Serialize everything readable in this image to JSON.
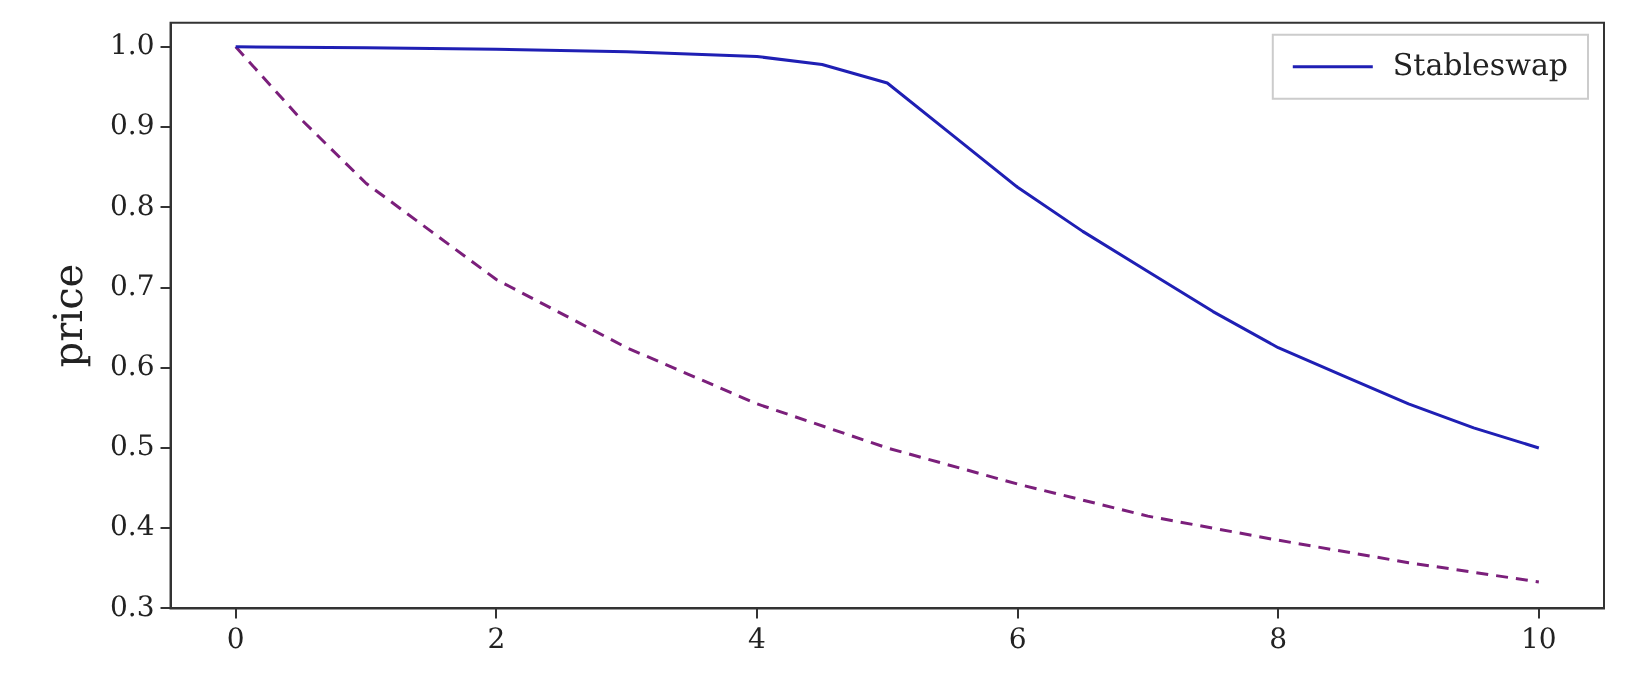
{
  "chart_data": {
    "type": "line",
    "ylabel": "price",
    "xlim": [
      -0.5,
      10.5
    ],
    "ylim": [
      0.3,
      1.03
    ],
    "xticks": [
      0,
      2,
      4,
      6,
      8,
      10
    ],
    "yticks": [
      0.3,
      0.4,
      0.5,
      0.6,
      0.7,
      0.8,
      0.9,
      {
        "value": 1,
        "label": "1.0"
      }
    ],
    "grid": false,
    "legend": "top right",
    "marker": "none",
    "series": [
      {
        "name": "Stableswap",
        "color": "#1f1fb4",
        "line_style": "solid",
        "x": [
          0,
          1,
          2,
          3,
          4,
          4.5,
          5,
          5.5,
          6,
          6.5,
          7,
          7.5,
          8,
          8.5,
          9,
          9.5,
          10
        ],
        "values": [
          1,
          0.999,
          0.997,
          0.994,
          0.988,
          0.978,
          0.955,
          0.89,
          0.825,
          0.77,
          0.72,
          0.67,
          0.625,
          0.59,
          0.555,
          0.525,
          0.5
        ]
      },
      {
        "color": "#7b1f7b",
        "line_style": "dashed",
        "x": [
          0,
          0.5,
          1,
          1.5,
          2,
          3,
          4,
          5,
          6,
          7,
          8,
          9,
          10
        ],
        "values": [
          1,
          0.91,
          0.83,
          0.77,
          0.71,
          0.625,
          0.555,
          0.5,
          0.455,
          0.415,
          0.385,
          0.357,
          0.333
        ]
      }
    ]
  }
}
